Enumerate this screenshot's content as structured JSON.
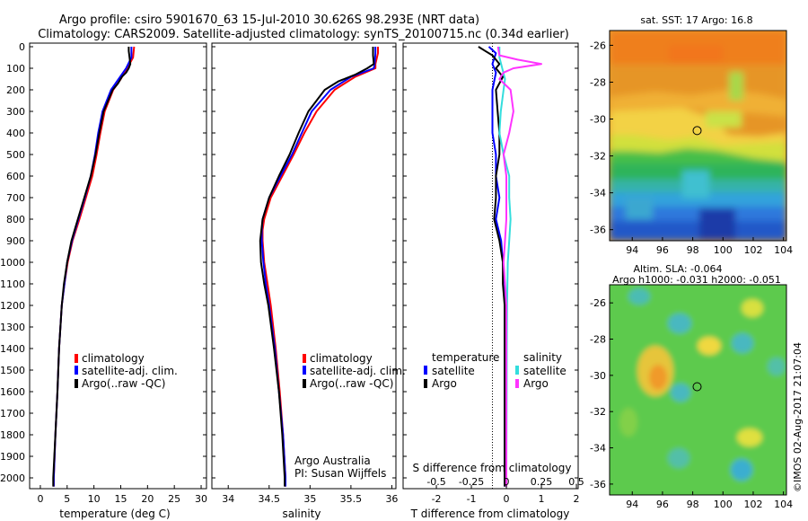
{
  "header": {
    "title_line1": "Argo profile: csiro 5901670_63 15-Jul-2010 30.626S 98.293E (NRT data)",
    "title_line2": "Climatology: CARS2009. Satellite-adjusted climatology: synTS_20100715.nc (0.34d earlier)"
  },
  "watermark": "©IMOS 02-Aug-2017 21:07:04",
  "colors": {
    "climatology": "#ff0000",
    "satellite": "#0000ff",
    "argo": "#000000",
    "sal_satellite": "#33dddd",
    "sal_argo": "#ff33ff"
  },
  "chart_data": [
    {
      "type": "line",
      "id": "temperature",
      "xlabel": "temperature (deg C)",
      "xlim": [
        -2,
        31
      ],
      "xticks": [
        0,
        5,
        10,
        15,
        20,
        25,
        30
      ],
      "ylim": [
        2080,
        0
      ],
      "yticks": [
        0,
        100,
        200,
        300,
        400,
        500,
        600,
        700,
        800,
        900,
        1000,
        1100,
        1200,
        1300,
        1400,
        1500,
        1600,
        1700,
        1800,
        1900,
        2000
      ],
      "legend": [
        "climatology",
        "satellite-adj. clim.",
        "Argo(..raw -QC)"
      ],
      "series": [
        {
          "name": "climatology",
          "depth": [
            0,
            50,
            100,
            150,
            200,
            300,
            400,
            500,
            600,
            700,
            800,
            900,
            1000,
            1100,
            1200,
            1400,
            1600,
            1800,
            2000,
            2040
          ],
          "values": [
            17.5,
            17.3,
            16.2,
            15.0,
            13.6,
            12.0,
            11.2,
            10.5,
            9.7,
            8.5,
            7.3,
            6.0,
            5.1,
            4.5,
            4.0,
            3.5,
            3.2,
            2.8,
            2.5,
            2.5
          ]
        },
        {
          "name": "satellite-adj. clim.",
          "depth": [
            0,
            50,
            100,
            150,
            200,
            300,
            400,
            500,
            600,
            700,
            800,
            900,
            1000,
            1100,
            1200,
            1400,
            1600,
            1800,
            2000,
            2040
          ],
          "values": [
            17.0,
            17.0,
            16.0,
            14.6,
            13.2,
            11.6,
            10.8,
            10.2,
            9.4,
            8.3,
            7.1,
            5.9,
            5.0,
            4.5,
            4.0,
            3.5,
            3.2,
            2.8,
            2.5,
            2.5
          ]
        },
        {
          "name": "Argo(..raw -QC)",
          "depth": [
            0,
            20,
            80,
            100,
            120,
            140,
            170,
            200,
            300,
            400,
            500,
            600,
            700,
            800,
            900,
            1000,
            1100,
            1200,
            1400,
            1600,
            1800,
            2000,
            2040
          ],
          "values": [
            16.5,
            16.5,
            16.8,
            16.5,
            16.0,
            15.2,
            14.5,
            13.5,
            11.8,
            11.0,
            10.3,
            9.4,
            8.2,
            7.0,
            5.8,
            5.0,
            4.4,
            4.0,
            3.5,
            3.2,
            2.8,
            2.4,
            2.4
          ]
        }
      ]
    },
    {
      "type": "line",
      "id": "salinity",
      "xlabel": "salinity",
      "xlim": [
        33.8,
        36.05
      ],
      "xticks": [
        34,
        34.5,
        35,
        35.5,
        36
      ],
      "ylim": [
        2080,
        0
      ],
      "legend": [
        "climatology",
        "satellite-adj. clim.",
        "Argo(..raw -QC)"
      ],
      "annotation": [
        "Argo Australia",
        "PI: Susan Wijffels"
      ],
      "series": [
        {
          "name": "climatology",
          "depth": [
            0,
            30,
            80,
            100,
            140,
            200,
            300,
            400,
            500,
            600,
            700,
            800,
            850,
            900,
            1000,
            1100,
            1200,
            1400,
            1600,
            1800,
            2000,
            2040
          ],
          "values": [
            35.83,
            35.83,
            35.8,
            35.8,
            35.55,
            35.3,
            35.08,
            34.93,
            34.8,
            34.66,
            34.52,
            34.44,
            34.42,
            34.42,
            34.44,
            34.48,
            34.52,
            34.58,
            34.63,
            34.67,
            34.7,
            34.7
          ]
        },
        {
          "name": "satellite-adj. clim.",
          "depth": [
            0,
            30,
            80,
            100,
            140,
            200,
            300,
            400,
            500,
            600,
            700,
            800,
            850,
            900,
            1000,
            1100,
            1200,
            1400,
            1600,
            1800,
            2000,
            2040
          ],
          "values": [
            35.8,
            35.8,
            35.79,
            35.78,
            35.5,
            35.25,
            35.02,
            34.9,
            34.78,
            34.64,
            34.5,
            34.42,
            34.41,
            34.41,
            34.43,
            34.46,
            34.5,
            34.57,
            34.62,
            34.67,
            34.7,
            34.7
          ]
        },
        {
          "name": "Argo(..raw -QC)",
          "depth": [
            0,
            40,
            80,
            100,
            130,
            160,
            200,
            300,
            400,
            500,
            600,
            700,
            800,
            900,
            1000,
            1100,
            1200,
            1400,
            1600,
            1800,
            2000,
            2040
          ],
          "values": [
            35.77,
            35.77,
            35.78,
            35.7,
            35.55,
            35.35,
            35.18,
            34.98,
            34.86,
            34.75,
            34.62,
            34.5,
            34.42,
            34.39,
            34.4,
            34.44,
            34.49,
            34.56,
            34.62,
            34.66,
            34.69,
            34.69
          ]
        }
      ]
    },
    {
      "type": "line",
      "id": "difference",
      "xlabel_bottom": "T difference from climatology",
      "xticks_bottom": [
        -2,
        -1,
        0,
        1,
        2
      ],
      "xlabel_top": "S difference from climatology",
      "xticks_top": [
        -0.5,
        -0.25,
        0,
        0.25,
        0.5
      ],
      "xlim": [
        -2.95,
        2.05
      ],
      "ylim": [
        2080,
        0
      ],
      "legend_titles": [
        "temperature",
        "salinity"
      ],
      "legend": [
        "satellite",
        "Argo",
        "satellite",
        "Argo"
      ],
      "series": [
        {
          "name": "temperature satellite",
          "depth": [
            0,
            30,
            80,
            120,
            200,
            300,
            400,
            500,
            600,
            700,
            800,
            900,
            1000,
            1100,
            1200,
            1400,
            1600,
            1800,
            2000,
            2040
          ],
          "values": [
            -0.5,
            -0.3,
            -0.4,
            -0.3,
            -0.4,
            -0.4,
            -0.4,
            -0.3,
            -0.3,
            -0.2,
            -0.3,
            -0.15,
            -0.1,
            -0.05,
            -0.05,
            -0.05,
            -0.05,
            -0.05,
            -0.05,
            -0.05
          ]
        },
        {
          "name": "temperature Argo",
          "depth": [
            0,
            20,
            40,
            80,
            100,
            120,
            140,
            200,
            300,
            400,
            500,
            600,
            700,
            800,
            900,
            1000,
            1100,
            1200,
            1400,
            1600,
            1800,
            2000,
            2040
          ],
          "values": [
            -0.8,
            -0.6,
            -0.4,
            -0.2,
            -0.3,
            -0.2,
            -0.1,
            -0.3,
            -0.25,
            -0.2,
            -0.2,
            -0.3,
            -0.3,
            -0.35,
            -0.2,
            -0.1,
            -0.1,
            -0.05,
            -0.05,
            -0.05,
            -0.05,
            -0.05,
            -0.05
          ]
        },
        {
          "name": "salinity satellite",
          "depth": [
            0,
            50,
            100,
            150,
            200,
            300,
            400,
            500,
            600,
            700,
            800,
            900,
            1000,
            1200,
            1400,
            1600,
            1800,
            2000,
            2040
          ],
          "values": [
            -0.05,
            -0.05,
            -0.03,
            -0.01,
            -0.02,
            -0.04,
            -0.05,
            -0.02,
            0.02,
            0.02,
            0.03,
            0.02,
            0.01,
            0.005,
            0.003,
            0.002,
            0.001,
            0.0,
            0.0
          ]
        },
        {
          "name": "salinity Argo",
          "depth": [
            0,
            40,
            60,
            80,
            100,
            120,
            150,
            200,
            300,
            400,
            500,
            600,
            700,
            800,
            900,
            1000,
            1100,
            1200,
            1400,
            1600,
            1800,
            2000,
            2040
          ],
          "values": [
            -0.06,
            -0.05,
            0.08,
            0.25,
            0.05,
            -0.02,
            -0.05,
            0.03,
            0.05,
            0.02,
            -0.02,
            0.0,
            0.0,
            0.0,
            -0.01,
            -0.02,
            -0.01,
            0.0,
            0.0,
            0.0,
            0.0,
            0.0,
            0.0
          ]
        }
      ]
    },
    {
      "type": "heatmap",
      "id": "sst_map",
      "title": "sat. SST: 17 Argo: 16.8",
      "xticks": [
        94,
        96,
        98,
        100,
        102,
        104
      ],
      "yticks": [
        -26,
        -28,
        -30,
        -32,
        -34,
        -36
      ],
      "xlim": [
        92.5,
        104.2
      ],
      "ylim": [
        -36.6,
        -25.2
      ],
      "argo_position": [
        98.293,
        -30.626
      ]
    },
    {
      "type": "heatmap",
      "id": "sla_map",
      "title_line1": "Altim. SLA: -0.064",
      "title_line2": "Argo h1000: -0.031 h2000: -0.051",
      "xticks": [
        94,
        96,
        98,
        100,
        102,
        104
      ],
      "yticks": [
        -26,
        -28,
        -30,
        -32,
        -34,
        -36
      ],
      "xlim": [
        92.5,
        104.2
      ],
      "ylim": [
        -36.6,
        -25.0
      ],
      "argo_position": [
        98.293,
        -30.626
      ]
    }
  ]
}
